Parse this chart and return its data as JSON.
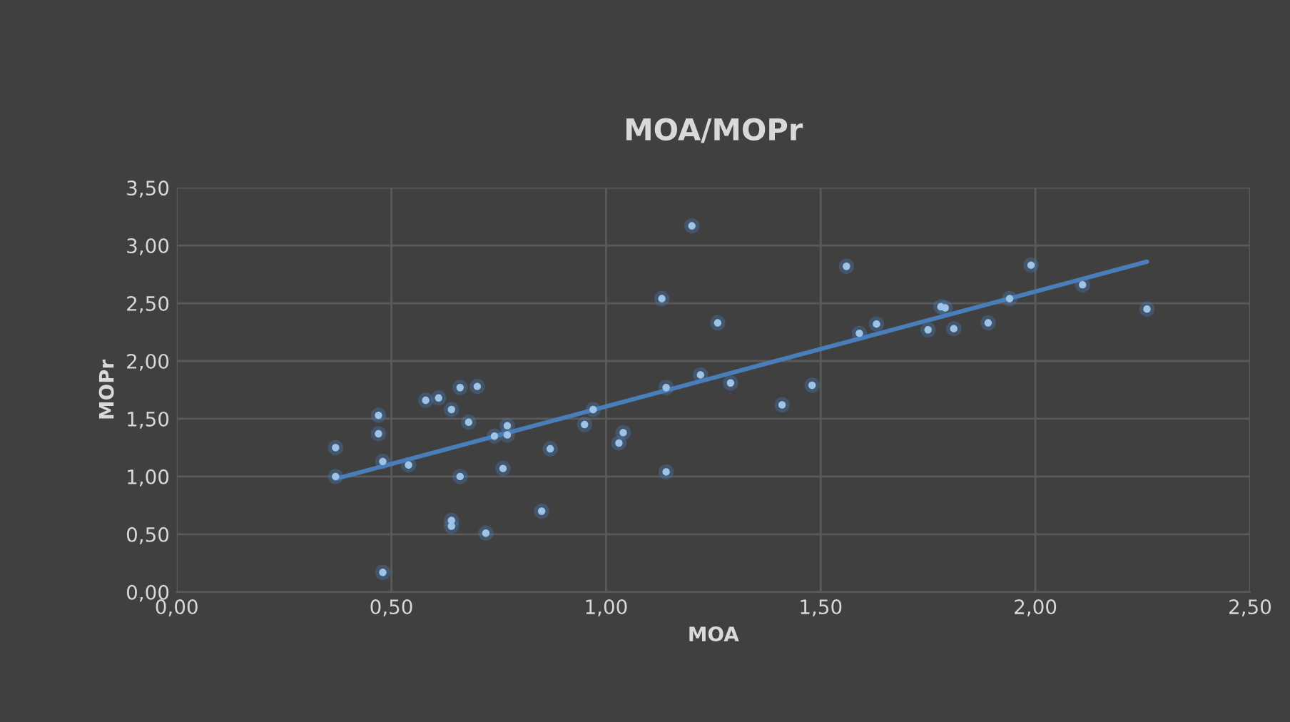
{
  "chart_data": {
    "type": "scatter",
    "title": "MOA/MOPr",
    "xlabel": "MOA",
    "ylabel": "MOPr",
    "series": [
      {
        "color": "#9dc3e6",
        "x": [
          0.37,
          0.37,
          0.47,
          0.47,
          0.48,
          0.48,
          0.54,
          0.58,
          0.61,
          0.64,
          0.66,
          0.7,
          0.68,
          0.64,
          0.64,
          0.66,
          0.72,
          0.74,
          0.77,
          0.77,
          0.76,
          0.85,
          0.87,
          0.95,
          0.97,
          1.03,
          1.04,
          1.13,
          1.14,
          1.14,
          1.2,
          1.22,
          1.26,
          1.29,
          1.41,
          1.48,
          1.56,
          1.59,
          1.63,
          1.75,
          1.78,
          1.79,
          1.81,
          1.89,
          1.94,
          1.99,
          2.11,
          2.26
        ],
        "values": [
          1.25,
          1.0,
          1.53,
          1.37,
          1.13,
          0.17,
          1.1,
          1.66,
          1.68,
          1.58,
          1.77,
          1.78,
          1.47,
          0.62,
          0.57,
          1.0,
          0.51,
          1.35,
          1.44,
          1.36,
          1.07,
          0.7,
          1.24,
          1.45,
          1.58,
          1.29,
          1.38,
          2.54,
          1.77,
          1.04,
          3.17,
          1.88,
          2.33,
          1.81,
          1.62,
          1.79,
          2.82,
          2.24,
          2.32,
          2.27,
          2.47,
          2.46,
          2.28,
          2.33,
          2.54,
          2.83,
          2.66,
          2.45
        ],
        "marker": "circle"
      },
      {
        "type": "line",
        "color": "#4a7ebb",
        "x": [
          0.37,
          2.26
        ],
        "values": [
          0.98,
          2.86
        ],
        "marker": "none",
        "line_style": "solid"
      }
    ],
    "xlim": [
      0,
      2.5
    ],
    "xticks": [
      {
        "value": 0,
        "label": "0,00"
      },
      {
        "value": 0.5,
        "label": "0,50"
      },
      {
        "value": 1,
        "label": "1,00"
      },
      {
        "value": 1.5,
        "label": "1,50"
      },
      {
        "value": 2,
        "label": "2,00"
      },
      {
        "value": 2.5,
        "label": "2,50"
      }
    ],
    "ylim": [
      0,
      3.5
    ],
    "yticks": [
      {
        "value": 0,
        "label": "0,00"
      },
      {
        "value": 0.5,
        "label": "0,50"
      },
      {
        "value": 1,
        "label": "1,00"
      },
      {
        "value": 1.5,
        "label": "1,50"
      },
      {
        "value": 2,
        "label": "2,00"
      },
      {
        "value": 2.5,
        "label": "2,50"
      },
      {
        "value": 3,
        "label": "3,00"
      },
      {
        "value": 3.5,
        "label": "3,50"
      }
    ],
    "grid": true,
    "legend": false
  }
}
